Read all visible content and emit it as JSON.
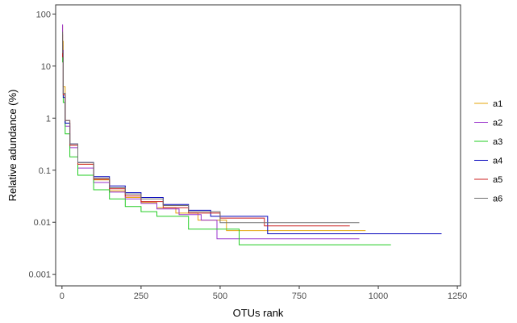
{
  "chart_data": {
    "type": "line",
    "step": true,
    "title": "",
    "xlabel": "OTUs rank",
    "ylabel": "Relative adundance (%)",
    "xlim": [
      -20,
      1260
    ],
    "ylim": [
      0.0006,
      150
    ],
    "yscale": "log10",
    "x_ticks": [
      0,
      250,
      500,
      750,
      1000,
      1250
    ],
    "x_tick_labels": [
      "0",
      "250",
      "500",
      "750",
      "1000",
      "1250"
    ],
    "y_ticks": [
      0.001,
      0.01,
      0.1,
      1,
      10,
      100
    ],
    "y_tick_labels": [
      "0.001",
      "0.01",
      "0.1",
      "1",
      "10",
      "100"
    ],
    "grid": false,
    "legend_position": "right",
    "series": [
      {
        "name": "a1",
        "color": "#E5A50A",
        "x": [
          1,
          2,
          4,
          10,
          25,
          50,
          100,
          150,
          200,
          250,
          300,
          360,
          430,
          520,
          960
        ],
        "y": [
          60,
          30,
          4,
          0.8,
          0.3,
          0.13,
          0.065,
          0.04,
          0.03,
          0.024,
          0.019,
          0.015,
          0.011,
          0.0069,
          0.0069
        ]
      },
      {
        "name": "a2",
        "color": "#9932CC",
        "x": [
          1,
          2,
          4,
          10,
          25,
          50,
          100,
          150,
          200,
          250,
          300,
          370,
          440,
          490,
          940
        ],
        "y": [
          62,
          20,
          3,
          0.7,
          0.27,
          0.11,
          0.058,
          0.038,
          0.028,
          0.023,
          0.018,
          0.014,
          0.011,
          0.0048,
          0.0048
        ]
      },
      {
        "name": "a3",
        "color": "#22CC22",
        "x": [
          1,
          2,
          4,
          10,
          25,
          50,
          100,
          150,
          200,
          250,
          300,
          400,
          560,
          1040
        ],
        "y": [
          30,
          12,
          2,
          0.5,
          0.18,
          0.08,
          0.042,
          0.028,
          0.02,
          0.016,
          0.013,
          0.0074,
          0.0037,
          0.0037
        ]
      },
      {
        "name": "a4",
        "color": "#0000BB",
        "x": [
          1,
          2,
          4,
          10,
          25,
          50,
          100,
          150,
          200,
          250,
          320,
          400,
          470,
          650,
          1200
        ],
        "y": [
          25,
          15,
          2.5,
          0.8,
          0.32,
          0.14,
          0.075,
          0.05,
          0.037,
          0.03,
          0.022,
          0.017,
          0.013,
          0.006,
          0.006
        ]
      },
      {
        "name": "a5",
        "color": "#CC2222",
        "x": [
          1,
          2,
          4,
          10,
          25,
          50,
          100,
          150,
          200,
          250,
          320,
          400,
          500,
          640,
          910
        ],
        "y": [
          40,
          15,
          2.8,
          0.9,
          0.3,
          0.13,
          0.067,
          0.044,
          0.032,
          0.025,
          0.019,
          0.015,
          0.012,
          0.0085,
          0.0085
        ]
      },
      {
        "name": "a6",
        "color": "#707070",
        "x": [
          1,
          2,
          4,
          10,
          25,
          50,
          100,
          150,
          200,
          250,
          320,
          400,
          500,
          940
        ],
        "y": [
          45,
          18,
          3,
          0.9,
          0.32,
          0.14,
          0.07,
          0.046,
          0.035,
          0.028,
          0.021,
          0.016,
          0.0098,
          0.0098
        ]
      }
    ]
  }
}
